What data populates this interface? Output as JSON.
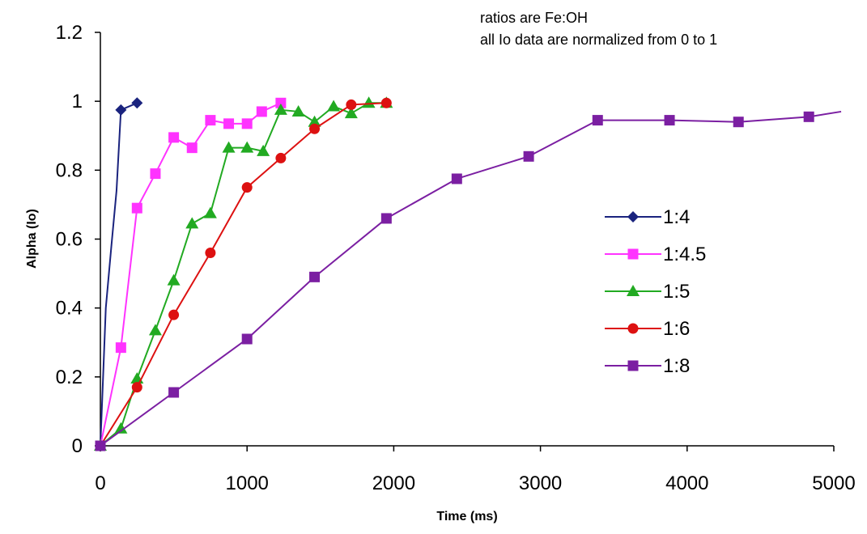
{
  "chart_data": {
    "type": "line",
    "xlabel": "Time (ms)",
    "ylabel": "Alpha (Io)",
    "xlim": [
      0,
      5000
    ],
    "ylim": [
      0,
      1.2
    ],
    "x_ticks": [
      "0",
      "1000",
      "2000",
      "3000",
      "4000",
      "5000"
    ],
    "y_ticks": [
      "0",
      "0.2",
      "0.4",
      "0.6",
      "0.8",
      "1",
      "1.2"
    ],
    "grid": false,
    "legend_position": "right",
    "annotations": [
      "ratios are Fe:OH",
      "all Io data are normalized from 0 to 1"
    ],
    "series": [
      {
        "name": "1:4",
        "color": "#1a237e",
        "marker": "diamond",
        "points": [
          [
            0,
            0
          ],
          [
            37,
            0.4
          ],
          [
            75,
            0.58
          ],
          [
            110,
            0.74
          ],
          [
            140,
            0.975
          ],
          [
            250,
            0.995
          ]
        ],
        "marked": [
          0,
          0,
          0,
          0,
          1,
          1
        ]
      },
      {
        "name": "1:4.5",
        "color": "#ff33ff",
        "marker": "square",
        "points": [
          [
            0,
            0
          ],
          [
            140,
            0.285
          ],
          [
            250,
            0.69
          ],
          [
            375,
            0.79
          ],
          [
            500,
            0.895
          ],
          [
            625,
            0.865
          ],
          [
            750,
            0.945
          ],
          [
            875,
            0.935
          ],
          [
            1000,
            0.935
          ],
          [
            1100,
            0.97
          ],
          [
            1230,
            0.995
          ]
        ],
        "marked": [
          1,
          1,
          1,
          1,
          1,
          1,
          1,
          1,
          1,
          1,
          1
        ]
      },
      {
        "name": "1:5",
        "color": "#22aa22",
        "marker": "triangle",
        "points": [
          [
            0,
            0
          ],
          [
            140,
            0.05
          ],
          [
            250,
            0.195
          ],
          [
            375,
            0.335
          ],
          [
            500,
            0.48
          ],
          [
            625,
            0.645
          ],
          [
            750,
            0.675
          ],
          [
            875,
            0.865
          ],
          [
            1000,
            0.865
          ],
          [
            1110,
            0.855
          ],
          [
            1230,
            0.975
          ],
          [
            1350,
            0.97
          ],
          [
            1460,
            0.94
          ],
          [
            1590,
            0.985
          ],
          [
            1710,
            0.965
          ],
          [
            1830,
            0.995
          ],
          [
            1950,
            0.995
          ]
        ],
        "marked": [
          1,
          1,
          1,
          1,
          1,
          1,
          1,
          1,
          1,
          1,
          1,
          1,
          1,
          1,
          1,
          1,
          1
        ]
      },
      {
        "name": "1:6",
        "color": "#dd1111",
        "marker": "circle",
        "points": [
          [
            0,
            0
          ],
          [
            250,
            0.17
          ],
          [
            500,
            0.38
          ],
          [
            750,
            0.56
          ],
          [
            1000,
            0.75
          ],
          [
            1230,
            0.835
          ],
          [
            1460,
            0.92
          ],
          [
            1710,
            0.99
          ],
          [
            1950,
            0.995
          ]
        ],
        "marked": [
          1,
          1,
          1,
          1,
          1,
          1,
          1,
          1,
          1
        ]
      },
      {
        "name": "1:8",
        "color": "#7b1fa2",
        "marker": "square",
        "points": [
          [
            0,
            0
          ],
          [
            500,
            0.155
          ],
          [
            1000,
            0.31
          ],
          [
            1460,
            0.49
          ],
          [
            1950,
            0.66
          ],
          [
            2430,
            0.775
          ],
          [
            2920,
            0.84
          ],
          [
            3390,
            0.945
          ],
          [
            3880,
            0.945
          ],
          [
            4350,
            0.94
          ],
          [
            4830,
            0.955
          ],
          [
            5050,
            0.97
          ]
        ],
        "marked": [
          1,
          1,
          1,
          1,
          1,
          1,
          1,
          1,
          1,
          1,
          1,
          0
        ]
      }
    ]
  }
}
